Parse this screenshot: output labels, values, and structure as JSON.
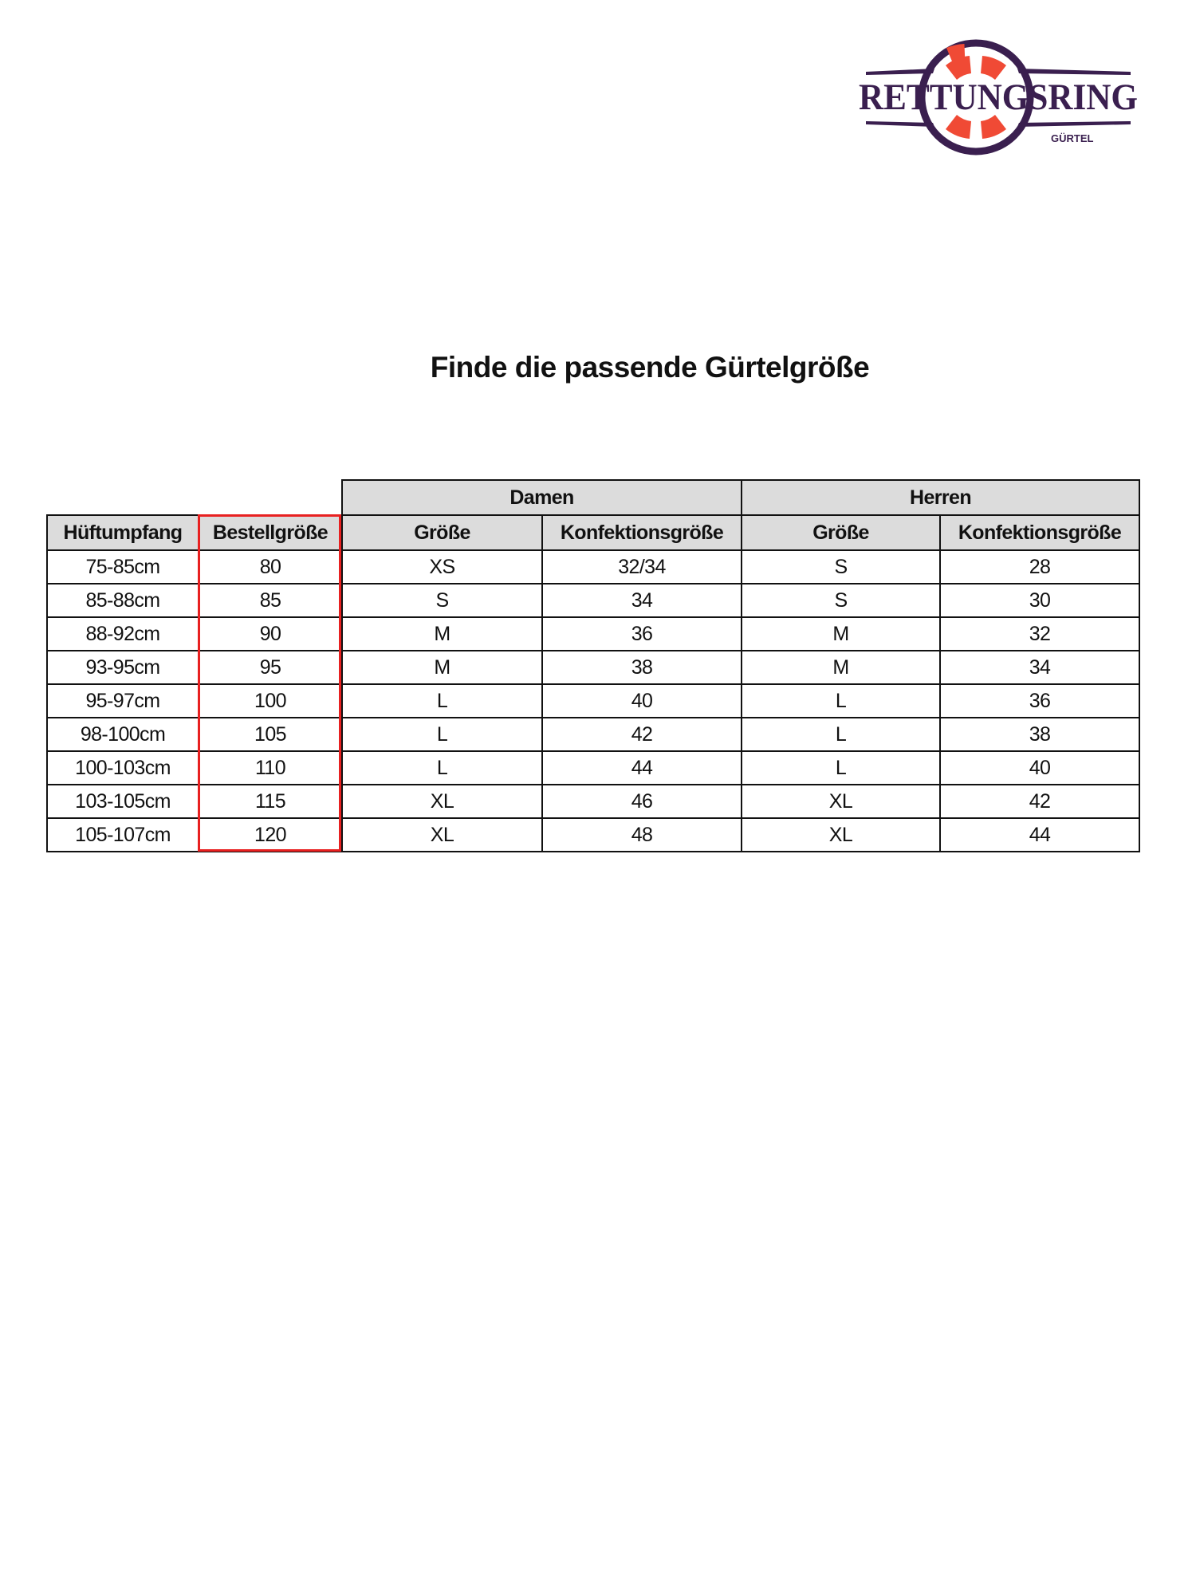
{
  "logo": {
    "text": "RETTUNGSRING",
    "subtext": "GÜRTEL",
    "colors": {
      "purple": "#3a1f4f",
      "red": "#f04a35"
    }
  },
  "title": "Finde die passende Gürtelgröße",
  "table": {
    "group_headers": [
      "Damen",
      "Herren"
    ],
    "headers": [
      "Hüftumpfang",
      "Bestellgröße",
      "Größe",
      "Konfektionsgröße",
      "Größe",
      "Konfektionsgröße"
    ],
    "highlight_color": "#e82020",
    "rows": [
      [
        "75-85cm",
        "80",
        "XS",
        "32/34",
        "S",
        "28"
      ],
      [
        "85-88cm",
        "85",
        "S",
        "34",
        "S",
        "30"
      ],
      [
        "88-92cm",
        "90",
        "M",
        "36",
        "M",
        "32"
      ],
      [
        "93-95cm",
        "95",
        "M",
        "38",
        "M",
        "34"
      ],
      [
        "95-97cm",
        "100",
        "L",
        "40",
        "L",
        "36"
      ],
      [
        "98-100cm",
        "105",
        "L",
        "42",
        "L",
        "38"
      ],
      [
        "100-103cm",
        "110",
        "L",
        "44",
        "L",
        "40"
      ],
      [
        "103-105cm",
        "115",
        "XL",
        "46",
        "XL",
        "42"
      ],
      [
        "105-107cm",
        "120",
        "XL",
        "48",
        "XL",
        "44"
      ]
    ]
  }
}
